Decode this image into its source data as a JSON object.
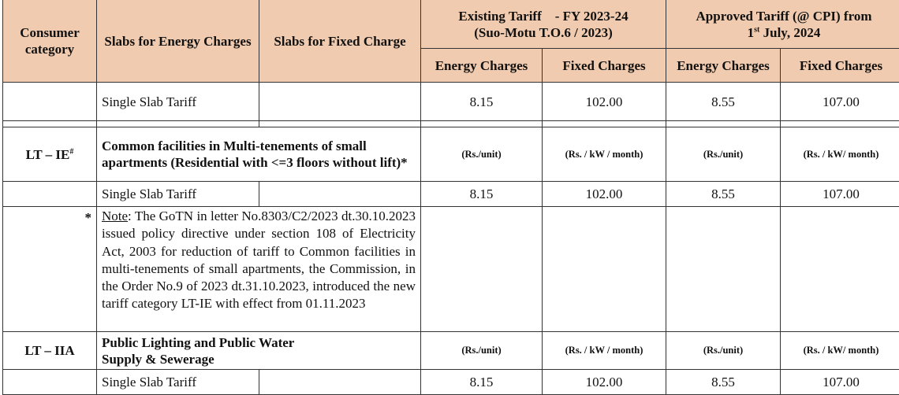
{
  "header": {
    "consumer_category": "Consumer category",
    "slabs_energy": "Slabs for Energy Charges",
    "slabs_fixed": "Slabs for Fixed Charge",
    "existing": {
      "line1": "Existing Tariff    - FY 2023-24",
      "line2": "(Suo-Motu T.O.6 / 2023)"
    },
    "approved": {
      "line1": "Approved Tariff  (@ CPI) from",
      "line2_pre": "1",
      "line2_sup": "st",
      "line2_post": " July, 2024"
    },
    "energy_charges": "Energy Charges",
    "fixed_charges": "Fixed Charges",
    "energy_charges_2": "Energy Charges",
    "fixed_charges_2": "Fixed Charges"
  },
  "rows": {
    "r1": {
      "slab": "Single Slab Tariff",
      "ex_energy": "8.15",
      "ex_fixed": "102.00",
      "ap_energy": "8.55",
      "ap_fixed": "107.00"
    },
    "lt_ie": {
      "code": "LT – IE",
      "code_sup": "#",
      "desc": "Common facilities in Multi-tenements of small apartments (Residential with <=3 floors without lift)*",
      "u1": "(Rs./unit)",
      "u2": "(Rs. / kW / month)",
      "u3": "(Rs./unit)",
      "u4": "(Rs. / kW/ month)"
    },
    "r2": {
      "slab": "Single Slab Tariff",
      "ex_energy": "8.15",
      "ex_fixed": "102.00",
      "ap_energy": "8.55",
      "ap_fixed": "107.00"
    },
    "note": {
      "marker": "*",
      "label": "Note",
      "text": ": The GoTN in letter No.8303/C2/2023 dt.30.10.2023 issued policy directive under section 108 of Electricity Act, 2003 for reduction of tariff to Common facilities in multi-tenements of small apartments, the Commission, in the Order No.9 of 2023 dt.31.10.2023, introduced the new",
      "last_line": "tariff category LT-IE with effect from 01.11.2023"
    },
    "lt_iia": {
      "code": "LT – IIA",
      "desc": "Public Lighting and Public Water Supply & Sewerage",
      "u1": "(Rs./unit)",
      "u2": "(Rs. / kW / month)",
      "u3": "(Rs./unit)",
      "u4": "(Rs. / kW/ month)"
    },
    "r3": {
      "slab": "Single Slab Tariff",
      "ex_energy": "8.15",
      "ex_fixed": "102.00",
      "ap_energy": "8.55",
      "ap_fixed": "107.00"
    }
  },
  "colors": {
    "header_bg": "#f0cbaf"
  }
}
